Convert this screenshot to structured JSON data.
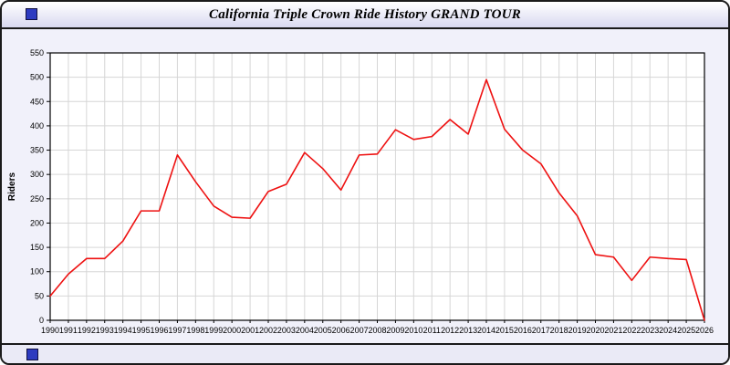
{
  "window": {
    "title": "California Triple Crown Ride History GRAND TOUR"
  },
  "colors": {
    "line": "#ee1111",
    "grid": "#d6d6d6",
    "plot_bg": "#ffffff",
    "plot_border": "#000000",
    "window_bg": "#f1f1fa",
    "accent_square": "#2d3bc0"
  },
  "chart_data": {
    "type": "line",
    "title": "California Triple Crown Ride History GRAND TOUR",
    "xlabel": "",
    "ylabel": "Riders",
    "ylim": [
      0,
      550
    ],
    "ytick_step": 50,
    "grid": true,
    "legend": "none",
    "x": [
      1990,
      1991,
      1992,
      1993,
      1994,
      1995,
      1996,
      1997,
      1998,
      1999,
      2000,
      2001,
      2002,
      2003,
      2004,
      2005,
      2006,
      2007,
      2008,
      2009,
      2010,
      2011,
      2012,
      2013,
      2014,
      2015,
      2016,
      2017,
      2018,
      2019,
      2020,
      2021,
      2022,
      2023,
      2024,
      2025,
      2026
    ],
    "series": [
      {
        "name": "Riders",
        "color": "#ee1111",
        "values": [
          50,
          95,
          127,
          127,
          163,
          225,
          225,
          340,
          285,
          235,
          212,
          210,
          265,
          280,
          345,
          312,
          268,
          340,
          342,
          392,
          372,
          378,
          413,
          383,
          495,
          393,
          350,
          322,
          262,
          215,
          135,
          130,
          82,
          130,
          127,
          125,
          0
        ]
      }
    ]
  }
}
